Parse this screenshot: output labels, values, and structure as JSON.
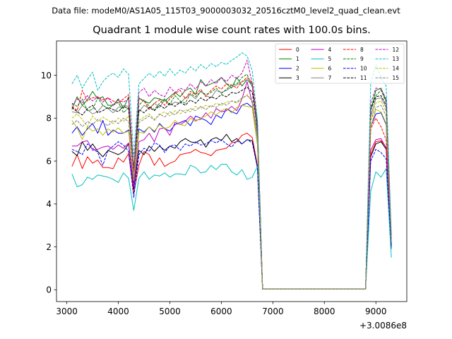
{
  "figure": {
    "suptitle": "Data file: modeM0/AS1A05_115T03_9000003032_20516cztM0_level2_quad_clean.evt"
  },
  "chart_data": {
    "type": "line",
    "title": "Quadrant 1 module wise count rates with 100.0s bins.",
    "xlabel": "",
    "ylabel": "",
    "x_offset_label": "+3.0086e8",
    "xlim": [
      2800,
      9600
    ],
    "ylim": [
      -0.55,
      11.6
    ],
    "xticks": [
      3000,
      4000,
      5000,
      6000,
      7000,
      8000,
      9000
    ],
    "yticks": [
      0,
      2,
      4,
      6,
      8,
      10
    ],
    "grid": false,
    "legend_position": "top-right",
    "x": [
      3100,
      3200,
      3300,
      3400,
      3500,
      3600,
      3700,
      3800,
      3900,
      4000,
      4100,
      4200,
      4300,
      4400,
      4500,
      4600,
      4700,
      4800,
      4900,
      5000,
      5100,
      5200,
      5300,
      5400,
      5500,
      5600,
      5700,
      5800,
      5900,
      6000,
      6100,
      6200,
      6300,
      6400,
      6500,
      6600,
      6700,
      6800,
      6900,
      7000,
      7100,
      7200,
      7300,
      7400,
      7500,
      7600,
      7700,
      7800,
      7900,
      8000,
      8100,
      8200,
      8300,
      8400,
      8500,
      8600,
      8700,
      8800,
      8900,
      9000,
      9100,
      9200,
      9300
    ],
    "series": [
      {
        "name": "0",
        "color": "#ff0000",
        "dash": "solid",
        "values": [
          5.75,
          6.3,
          5.65,
          6.2,
          5.9,
          6.05,
          5.7,
          5.7,
          5.65,
          6.15,
          5.95,
          6.35,
          4.5,
          5.8,
          6.45,
          6.3,
          5.8,
          6.15,
          5.75,
          5.9,
          6.0,
          6.3,
          6.35,
          6.4,
          6.55,
          6.4,
          6.35,
          6.25,
          6.5,
          6.55,
          6.6,
          6.85,
          6.9,
          7.2,
          7.3,
          7.1,
          5.8,
          0.03,
          0.03,
          0.03,
          0.03,
          0.03,
          0.03,
          0.03,
          0.03,
          0.03,
          0.03,
          0.03,
          0.03,
          0.03,
          0.03,
          0.03,
          0.03,
          0.03,
          0.03,
          0.03,
          0.03,
          0.03,
          6.3,
          6.9,
          6.95,
          6.65,
          2.2
        ]
      },
      {
        "name": "1",
        "color": "#008000",
        "dash": "solid",
        "values": [
          8.4,
          9.0,
          8.6,
          8.85,
          9.25,
          8.9,
          9.0,
          8.6,
          8.6,
          8.9,
          8.45,
          9.0,
          5.3,
          8.95,
          8.8,
          8.7,
          8.95,
          8.9,
          8.8,
          9.0,
          9.2,
          9.0,
          9.3,
          9.4,
          9.1,
          9.8,
          9.5,
          9.6,
          9.7,
          9.9,
          9.6,
          9.4,
          9.9,
          9.5,
          9.8,
          9.6,
          7.3,
          0.03,
          0.03,
          0.03,
          0.03,
          0.03,
          0.03,
          0.03,
          0.03,
          0.03,
          0.03,
          0.03,
          0.03,
          0.03,
          0.03,
          0.03,
          0.03,
          0.03,
          0.03,
          0.03,
          0.03,
          0.03,
          8.35,
          9.3,
          9.4,
          8.8,
          1.9
        ]
      },
      {
        "name": "2",
        "color": "#0000ff",
        "dash": "solid",
        "values": [
          7.3,
          7.6,
          7.2,
          7.5,
          7.75,
          7.3,
          7.9,
          7.2,
          7.45,
          7.3,
          7.3,
          7.45,
          5.0,
          7.5,
          7.35,
          7.6,
          7.35,
          7.75,
          7.5,
          7.4,
          7.7,
          7.8,
          7.9,
          7.65,
          8.1,
          8.0,
          7.9,
          7.7,
          8.15,
          8.0,
          8.45,
          8.3,
          8.2,
          8.6,
          8.7,
          8.5,
          6.8,
          0.03,
          0.03,
          0.03,
          0.03,
          0.03,
          0.03,
          0.03,
          0.03,
          0.03,
          0.03,
          0.03,
          0.03,
          0.03,
          0.03,
          0.03,
          0.03,
          0.03,
          0.03,
          0.03,
          0.03,
          0.03,
          7.6,
          8.2,
          8.25,
          7.7,
          2.0
        ]
      },
      {
        "name": "3",
        "color": "#000000",
        "dash": "solid",
        "values": [
          6.45,
          6.25,
          6.9,
          6.5,
          6.8,
          6.45,
          6.2,
          6.5,
          6.4,
          6.3,
          6.45,
          6.8,
          4.7,
          6.5,
          6.3,
          6.7,
          6.45,
          6.7,
          6.5,
          6.7,
          6.6,
          6.9,
          7.05,
          6.9,
          6.85,
          7.0,
          6.65,
          7.0,
          7.1,
          6.95,
          7.25,
          6.9,
          7.05,
          6.8,
          7.0,
          6.95,
          5.7,
          0.03,
          0.03,
          0.03,
          0.03,
          0.03,
          0.03,
          0.03,
          0.03,
          0.03,
          0.03,
          0.03,
          0.03,
          0.03,
          0.03,
          0.03,
          0.03,
          0.03,
          0.03,
          0.03,
          0.03,
          0.03,
          6.2,
          6.8,
          6.9,
          6.55,
          2.1
        ]
      },
      {
        "name": "4",
        "color": "#bf00bf",
        "dash": "solid",
        "values": [
          6.7,
          6.7,
          6.9,
          6.95,
          6.5,
          6.55,
          6.65,
          6.7,
          6.55,
          6.75,
          6.6,
          6.85,
          4.8,
          6.9,
          7.0,
          7.3,
          6.9,
          7.5,
          7.55,
          7.2,
          7.8,
          7.7,
          7.85,
          8.1,
          7.9,
          7.95,
          8.25,
          8.0,
          8.45,
          8.3,
          8.35,
          8.55,
          8.35,
          8.9,
          9.7,
          8.7,
          7.1,
          0.03,
          0.03,
          0.03,
          0.03,
          0.03,
          0.03,
          0.03,
          0.03,
          0.03,
          0.03,
          0.03,
          0.03,
          0.03,
          0.03,
          0.03,
          0.03,
          0.03,
          0.03,
          0.03,
          0.03,
          0.03,
          6.5,
          7.0,
          7.05,
          6.6,
          2.3
        ]
      },
      {
        "name": "5",
        "color": "#00bfbf",
        "dash": "solid",
        "values": [
          5.4,
          4.8,
          4.9,
          5.25,
          5.15,
          5.35,
          5.3,
          5.25,
          5.15,
          5.0,
          5.45,
          5.2,
          3.7,
          5.2,
          5.5,
          5.15,
          5.35,
          5.3,
          5.45,
          5.25,
          5.4,
          5.4,
          5.35,
          5.8,
          5.7,
          5.45,
          5.5,
          5.8,
          5.6,
          5.85,
          5.85,
          5.5,
          5.35,
          5.6,
          5.15,
          5.25,
          5.75,
          0.03,
          0.03,
          0.03,
          0.03,
          0.03,
          0.03,
          0.03,
          0.03,
          0.03,
          0.03,
          0.03,
          0.03,
          0.03,
          0.03,
          0.03,
          0.03,
          0.03,
          0.03,
          0.03,
          0.03,
          0.03,
          4.6,
          5.5,
          5.25,
          5.65,
          1.5
        ]
      },
      {
        "name": "6",
        "color": "#bfbf00",
        "dash": "solid",
        "values": [
          7.9,
          7.55,
          7.0,
          7.6,
          7.4,
          7.5,
          7.2,
          7.5,
          7.35,
          7.55,
          7.3,
          7.4,
          5.1,
          7.35,
          7.3,
          7.6,
          7.4,
          7.7,
          7.5,
          7.6,
          7.9,
          7.7,
          7.65,
          8.0,
          7.85,
          8.0,
          8.1,
          8.3,
          8.15,
          8.35,
          8.45,
          8.25,
          8.5,
          8.6,
          8.55,
          8.5,
          6.8,
          0.03,
          0.03,
          0.03,
          0.03,
          0.03,
          0.03,
          0.03,
          0.03,
          0.03,
          0.03,
          0.03,
          0.03,
          0.03,
          0.03,
          0.03,
          0.03,
          0.03,
          0.03,
          0.03,
          0.03,
          0.03,
          7.6,
          8.4,
          8.3,
          7.75,
          2.3
        ]
      },
      {
        "name": "7",
        "color": "#808080",
        "dash": "solid",
        "values": [
          8.3,
          8.25,
          8.6,
          8.4,
          8.2,
          8.3,
          8.6,
          8.45,
          8.25,
          8.5,
          8.6,
          8.55,
          5.7,
          8.3,
          8.6,
          8.45,
          8.7,
          8.5,
          8.85,
          8.6,
          8.75,
          8.7,
          8.95,
          9.1,
          8.9,
          9.25,
          9.05,
          8.95,
          9.3,
          9.2,
          9.3,
          9.45,
          9.55,
          9.7,
          9.8,
          9.5,
          7.6,
          0.03,
          0.03,
          0.03,
          0.03,
          0.03,
          0.03,
          0.03,
          0.03,
          0.03,
          0.03,
          0.03,
          0.03,
          0.03,
          0.03,
          0.03,
          0.03,
          0.03,
          0.03,
          0.03,
          0.03,
          0.03,
          8.1,
          8.9,
          8.95,
          8.5,
          2.5
        ]
      },
      {
        "name": "8",
        "color": "#ff0000",
        "dash": "dashed",
        "values": [
          8.55,
          8.35,
          9.3,
          8.8,
          8.95,
          9.0,
          8.85,
          8.95,
          8.8,
          8.7,
          8.9,
          9.1,
          5.6,
          8.9,
          8.8,
          8.4,
          8.7,
          8.85,
          8.6,
          8.9,
          9.15,
          9.3,
          8.9,
          9.25,
          9.1,
          9.35,
          9.0,
          9.3,
          9.5,
          9.35,
          9.6,
          9.55,
          9.4,
          9.7,
          9.9,
          9.65,
          7.9,
          0.03,
          0.03,
          0.03,
          0.03,
          0.03,
          0.03,
          0.03,
          0.03,
          0.03,
          0.03,
          0.03,
          0.03,
          0.03,
          0.03,
          0.03,
          0.03,
          0.03,
          0.03,
          0.03,
          0.03,
          0.03,
          7.5,
          8.0,
          7.6,
          7.0,
          2.1
        ]
      },
      {
        "name": "9",
        "color": "#008000",
        "dash": "dashed",
        "values": [
          8.7,
          8.55,
          8.9,
          8.35,
          8.4,
          8.95,
          8.6,
          8.45,
          8.6,
          8.75,
          8.25,
          8.5,
          5.6,
          8.6,
          8.85,
          8.55,
          8.4,
          8.7,
          8.9,
          8.65,
          9.05,
          8.8,
          8.7,
          9.15,
          9.0,
          9.25,
          9.1,
          9.2,
          9.4,
          9.15,
          9.35,
          9.55,
          9.6,
          9.9,
          10.05,
          9.45,
          7.8,
          0.03,
          0.03,
          0.03,
          0.03,
          0.03,
          0.03,
          0.03,
          0.03,
          0.03,
          0.03,
          0.03,
          0.03,
          0.03,
          0.03,
          0.03,
          0.03,
          0.03,
          0.03,
          0.03,
          0.03,
          0.03,
          8.5,
          9.05,
          9.3,
          8.75,
          2.4
        ]
      },
      {
        "name": "10",
        "color": "#0000ff",
        "dash": "dashed",
        "values": [
          6.55,
          6.45,
          6.3,
          6.8,
          6.6,
          6.4,
          5.8,
          6.5,
          6.7,
          6.9,
          6.75,
          6.45,
          4.3,
          6.3,
          6.6,
          6.45,
          6.85,
          6.75,
          6.4,
          6.7,
          6.75,
          6.5,
          6.8,
          6.7,
          6.9,
          6.75,
          6.8,
          6.95,
          6.85,
          7.0,
          6.8,
          6.65,
          6.95,
          6.8,
          7.0,
          6.85,
          5.7,
          0.03,
          0.03,
          0.03,
          0.03,
          0.03,
          0.03,
          0.03,
          0.03,
          0.03,
          0.03,
          0.03,
          0.03,
          0.03,
          0.03,
          0.03,
          0.03,
          0.03,
          0.03,
          0.03,
          0.03,
          0.03,
          6.0,
          6.55,
          6.4,
          6.1,
          2.0
        ]
      },
      {
        "name": "11",
        "color": "#000000",
        "dash": "dashed",
        "values": [
          8.5,
          8.3,
          8.15,
          8.45,
          8.6,
          8.25,
          8.35,
          8.5,
          8.4,
          8.3,
          8.55,
          8.45,
          5.5,
          8.4,
          8.25,
          8.5,
          8.35,
          8.6,
          8.45,
          8.7,
          8.55,
          8.75,
          8.6,
          8.85,
          8.7,
          8.95,
          8.8,
          9.0,
          8.9,
          9.1,
          9.0,
          9.2,
          9.15,
          9.3,
          9.45,
          9.2,
          7.5,
          0.03,
          0.03,
          0.03,
          0.03,
          0.03,
          0.03,
          0.03,
          0.03,
          0.03,
          0.03,
          0.03,
          0.03,
          0.03,
          0.03,
          0.03,
          0.03,
          0.03,
          0.03,
          0.03,
          0.03,
          0.03,
          8.4,
          9.0,
          9.05,
          8.6,
          2.3
        ]
      },
      {
        "name": "12",
        "color": "#bf00bf",
        "dash": "dashed",
        "values": [
          8.6,
          8.9,
          8.7,
          9.05,
          8.8,
          9.0,
          8.75,
          8.95,
          8.6,
          8.85,
          8.75,
          8.9,
          5.5,
          9.2,
          9.4,
          9.0,
          9.3,
          9.1,
          9.0,
          9.45,
          9.2,
          9.4,
          9.3,
          9.6,
          9.35,
          9.7,
          9.5,
          9.8,
          9.6,
          9.9,
          9.7,
          10.0,
          9.85,
          10.1,
          10.7,
          9.6,
          7.4,
          0.03,
          0.03,
          0.03,
          0.03,
          0.03,
          0.03,
          0.03,
          0.03,
          0.03,
          0.03,
          0.03,
          0.03,
          0.03,
          0.03,
          0.03,
          0.03,
          0.03,
          0.03,
          0.03,
          0.03,
          0.03,
          8.7,
          9.4,
          9.35,
          8.9,
          2.4
        ]
      },
      {
        "name": "13",
        "color": "#00bfbf",
        "dash": "dashed",
        "values": [
          9.6,
          10.0,
          9.4,
          9.8,
          10.15,
          9.3,
          9.7,
          9.95,
          10.1,
          9.9,
          10.3,
          10.05,
          6.2,
          9.6,
          9.85,
          10.1,
          9.9,
          10.2,
          9.95,
          10.3,
          10.0,
          10.25,
          10.1,
          10.4,
          10.2,
          10.5,
          10.3,
          10.55,
          10.4,
          10.6,
          10.5,
          10.7,
          10.85,
          11.05,
          10.9,
          10.2,
          7.9,
          0.03,
          0.03,
          0.03,
          0.03,
          0.03,
          0.03,
          0.03,
          0.03,
          0.03,
          0.03,
          0.03,
          0.03,
          0.03,
          0.03,
          0.03,
          0.03,
          0.03,
          0.03,
          0.03,
          0.03,
          0.03,
          9.6,
          10.5,
          9.9,
          9.5,
          2.6
        ]
      },
      {
        "name": "14",
        "color": "#bfbf00",
        "dash": "dashed",
        "values": [
          8.0,
          8.2,
          7.95,
          7.6,
          8.1,
          7.85,
          8.05,
          7.9,
          7.75,
          8.0,
          7.85,
          8.1,
          5.3,
          7.9,
          8.05,
          8.2,
          7.95,
          8.15,
          8.3,
          8.1,
          8.35,
          8.2,
          8.4,
          8.3,
          8.55,
          8.45,
          8.6,
          8.5,
          8.7,
          8.6,
          8.75,
          8.8,
          8.7,
          8.9,
          9.1,
          8.8,
          7.0,
          0.03,
          0.03,
          0.03,
          0.03,
          0.03,
          0.03,
          0.03,
          0.03,
          0.03,
          0.03,
          0.03,
          0.03,
          0.03,
          0.03,
          0.03,
          0.03,
          0.03,
          0.03,
          0.03,
          0.03,
          0.03,
          8.0,
          8.7,
          8.8,
          8.3,
          2.2
        ]
      },
      {
        "name": "15",
        "color": "#808080",
        "dash": "dashed",
        "values": [
          7.7,
          7.9,
          7.6,
          7.85,
          7.7,
          7.95,
          7.8,
          7.65,
          7.9,
          7.75,
          8.0,
          7.85,
          5.2,
          7.8,
          7.95,
          8.1,
          7.9,
          8.2,
          8.05,
          8.3,
          8.15,
          8.4,
          8.25,
          8.45,
          8.35,
          8.55,
          8.4,
          8.6,
          8.5,
          8.7,
          8.6,
          8.8,
          8.75,
          8.95,
          9.05,
          8.8,
          7.1,
          0.03,
          0.03,
          0.03,
          0.03,
          0.03,
          0.03,
          0.03,
          0.03,
          0.03,
          0.03,
          0.03,
          0.03,
          0.03,
          0.03,
          0.03,
          0.03,
          0.03,
          0.03,
          0.03,
          0.03,
          0.03,
          7.9,
          8.5,
          8.6,
          8.1,
          2.2
        ]
      }
    ]
  }
}
